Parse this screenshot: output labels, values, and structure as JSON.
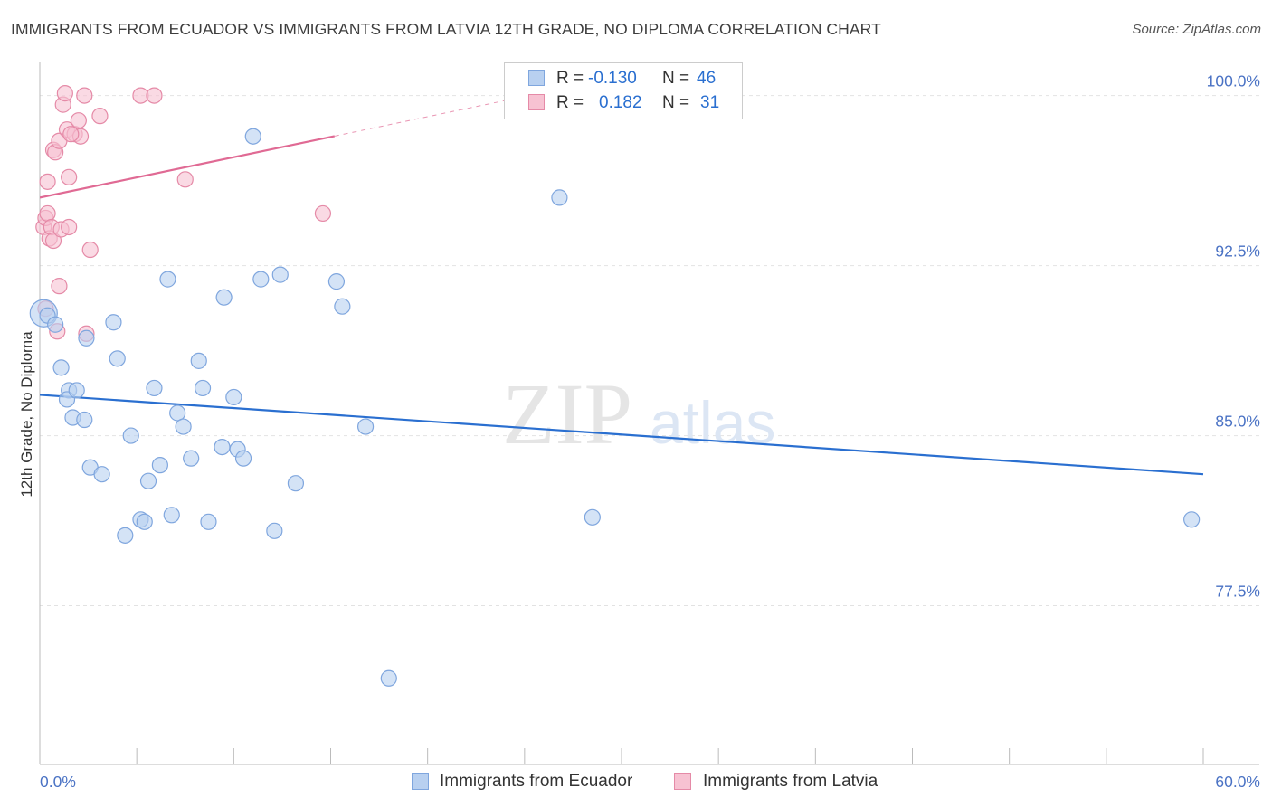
{
  "title": "IMMIGRANTS FROM ECUADOR VS IMMIGRANTS FROM LATVIA 12TH GRADE, NO DIPLOMA CORRELATION CHART",
  "source": "Source: ZipAtlas.com",
  "watermark": {
    "zip": "ZIP",
    "atlas": "atlas"
  },
  "colors": {
    "ecuador_fill": "#b8d0f0",
    "ecuador_stroke": "#7fa6de",
    "ecuador_line": "#2a6fd0",
    "latvia_fill": "#f7c2d2",
    "latvia_stroke": "#e58aa7",
    "latvia_line": "#e06a94",
    "axis_text": "#4a72c4",
    "grid": "#e2e2e2"
  },
  "legend": {
    "rows": [
      {
        "r_label": "R =",
        "r_value": "-0.130",
        "n_label": "N =",
        "n_value": "46"
      },
      {
        "r_label": "R =",
        "r_value": "0.182",
        "n_label": "N =",
        "n_value": "31"
      }
    ]
  },
  "chart_data": {
    "type": "scatter",
    "title": "IMMIGRANTS FROM ECUADOR VS IMMIGRANTS FROM LATVIA 12TH GRADE, NO DIPLOMA CORRELATION CHART",
    "xlabel": "",
    "ylabel": "12th Grade, No Diploma",
    "xlim": [
      0,
      60
    ],
    "ylim": [
      70.5,
      101.5
    ],
    "x_tick_labels": [
      "0.0%",
      "60.0%"
    ],
    "y_ticks": [
      77.5,
      85.0,
      92.5,
      100.0
    ],
    "y_tick_labels": [
      "77.5%",
      "85.0%",
      "92.5%",
      "100.0%"
    ],
    "series": [
      {
        "name": "Immigrants from Ecuador",
        "r": -0.13,
        "n": 46,
        "trend": {
          "x0": 0.0,
          "y0": 86.8,
          "x1": 60.0,
          "y1": 83.3,
          "solid_to": 60.0
        },
        "points": [
          [
            0.2,
            90.4
          ],
          [
            0.4,
            90.3
          ],
          [
            0.8,
            89.9
          ],
          [
            1.1,
            88.0
          ],
          [
            1.5,
            87.0
          ],
          [
            1.4,
            86.6
          ],
          [
            1.9,
            87.0
          ],
          [
            1.7,
            85.8
          ],
          [
            2.3,
            85.7
          ],
          [
            3.8,
            90.0
          ],
          [
            2.4,
            89.3
          ],
          [
            4.0,
            88.4
          ],
          [
            2.6,
            83.6
          ],
          [
            3.2,
            83.3
          ],
          [
            4.7,
            85.0
          ],
          [
            5.9,
            87.1
          ],
          [
            6.2,
            83.7
          ],
          [
            5.6,
            83.0
          ],
          [
            5.2,
            81.3
          ],
          [
            5.4,
            81.2
          ],
          [
            4.4,
            80.6
          ],
          [
            6.6,
            91.9
          ],
          [
            8.2,
            88.3
          ],
          [
            8.4,
            87.1
          ],
          [
            7.1,
            86.0
          ],
          [
            7.4,
            85.4
          ],
          [
            7.8,
            84.0
          ],
          [
            8.7,
            81.2
          ],
          [
            6.8,
            81.5
          ],
          [
            9.4,
            84.5
          ],
          [
            9.5,
            91.1
          ],
          [
            10.0,
            86.7
          ],
          [
            10.2,
            84.4
          ],
          [
            10.5,
            84.0
          ],
          [
            11.0,
            98.2
          ],
          [
            11.4,
            91.9
          ],
          [
            12.1,
            80.8
          ],
          [
            12.4,
            92.1
          ],
          [
            13.2,
            82.9
          ],
          [
            15.3,
            91.8
          ],
          [
            15.6,
            90.7
          ],
          [
            16.8,
            85.4
          ],
          [
            18.0,
            74.3
          ],
          [
            26.8,
            95.5
          ],
          [
            28.5,
            81.4
          ],
          [
            59.4,
            81.3
          ]
        ]
      },
      {
        "name": "Immigrants from Latvia",
        "r": 0.182,
        "n": 31,
        "trend": {
          "x0": 0.0,
          "y0": 95.5,
          "x1": 60.0,
          "y1": 106.2,
          "solid_to": 15.2
        },
        "points": [
          [
            0.2,
            94.2
          ],
          [
            0.3,
            94.6
          ],
          [
            0.3,
            90.6
          ],
          [
            0.4,
            94.8
          ],
          [
            0.4,
            96.2
          ],
          [
            0.5,
            93.7
          ],
          [
            0.6,
            94.2
          ],
          [
            0.7,
            93.6
          ],
          [
            0.7,
            97.6
          ],
          [
            0.8,
            97.5
          ],
          [
            0.9,
            89.6
          ],
          [
            1.0,
            91.6
          ],
          [
            1.1,
            94.1
          ],
          [
            1.0,
            98.0
          ],
          [
            1.2,
            99.6
          ],
          [
            1.3,
            100.1
          ],
          [
            1.4,
            98.5
          ],
          [
            1.5,
            96.4
          ],
          [
            1.5,
            94.2
          ],
          [
            1.8,
            98.3
          ],
          [
            2.0,
            98.9
          ],
          [
            2.1,
            98.2
          ],
          [
            2.3,
            100.0
          ],
          [
            2.4,
            89.5
          ],
          [
            2.6,
            93.2
          ],
          [
            3.1,
            99.1
          ],
          [
            5.2,
            100.0
          ],
          [
            5.9,
            100.0
          ],
          [
            7.5,
            96.3
          ],
          [
            14.6,
            94.8
          ],
          [
            1.6,
            98.3
          ]
        ]
      }
    ]
  },
  "footer_legend": {
    "items": [
      "Immigrants from Ecuador",
      "Immigrants from Latvia"
    ]
  }
}
